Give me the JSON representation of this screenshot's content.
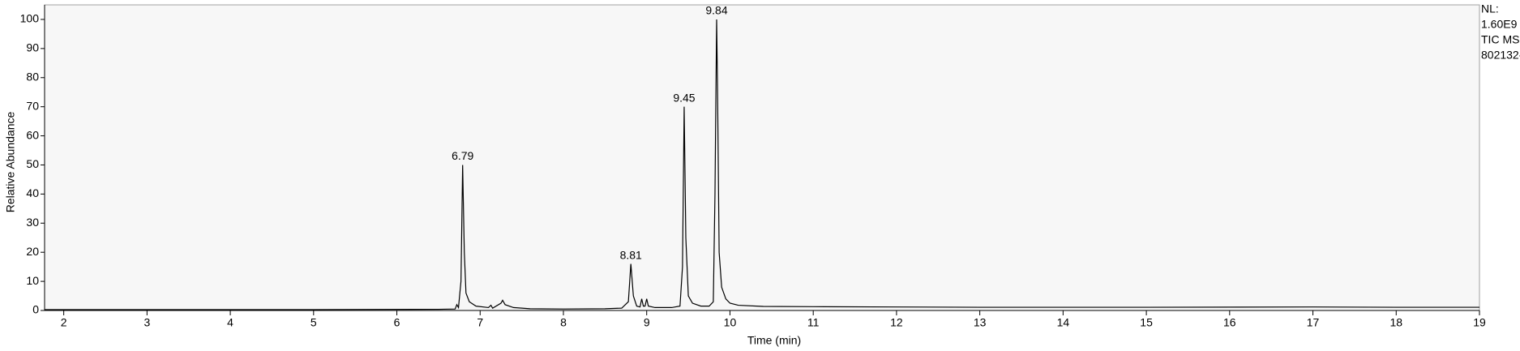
{
  "chart_data": {
    "type": "line",
    "x_label": "Time (min)",
    "y_label": "Relative Abundance",
    "side_labels": [
      "NL:",
      "1.60E9",
      "TIC  MS",
      "802132-"
    ],
    "color": "#000000",
    "x": [
      1.77,
      3,
      5,
      6.5,
      6.7,
      6.72,
      6.74,
      6.77,
      6.79,
      6.81,
      6.83,
      6.87,
      6.95,
      7.1,
      7.13,
      7.15,
      7.25,
      7.27,
      7.3,
      7.4,
      7.6,
      8.0,
      8.5,
      8.7,
      8.78,
      8.81,
      8.84,
      8.88,
      8.92,
      8.94,
      8.96,
      8.98,
      9.0,
      9.02,
      9.1,
      9.3,
      9.4,
      9.43,
      9.45,
      9.47,
      9.5,
      9.55,
      9.65,
      9.75,
      9.8,
      9.82,
      9.84,
      9.85,
      9.87,
      9.9,
      9.95,
      10.0,
      10.1,
      10.4,
      11,
      12,
      13,
      15,
      17,
      18,
      19
    ],
    "values": [
      0.3,
      0.3,
      0.3,
      0.4,
      0.5,
      2,
      1,
      10,
      50,
      20,
      6,
      3,
      1.5,
      1,
      1.8,
      0.8,
      2.5,
      3.5,
      2,
      1,
      0.6,
      0.5,
      0.6,
      0.8,
      3,
      16,
      5,
      1.5,
      1.2,
      4,
      1.5,
      1.5,
      4,
      1.5,
      1,
      1,
      1.5,
      15,
      70,
      25,
      5,
      2.5,
      1.5,
      1.5,
      3,
      40,
      100,
      78,
      20,
      8,
      4,
      2.5,
      1.8,
      1.4,
      1.3,
      1.2,
      1.1,
      1.1,
      1.2,
      1.1,
      1.1
    ],
    "peak_labels": [
      {
        "x": 6.79,
        "y": 50,
        "label": "6.79"
      },
      {
        "x": 8.81,
        "y": 16,
        "label": "8.81"
      },
      {
        "x": 9.45,
        "y": 70,
        "label": "9.45"
      },
      {
        "x": 9.84,
        "y": 100,
        "label": "9.84"
      }
    ],
    "xlim": [
      1.77,
      19
    ],
    "ylim": [
      0,
      105
    ],
    "xticks": [
      2,
      3,
      4,
      5,
      6,
      7,
      8,
      9,
      10,
      11,
      12,
      13,
      14,
      15,
      16,
      17,
      18,
      19
    ],
    "yticks": [
      0,
      10,
      20,
      30,
      40,
      50,
      60,
      70,
      80,
      90,
      100
    ]
  }
}
